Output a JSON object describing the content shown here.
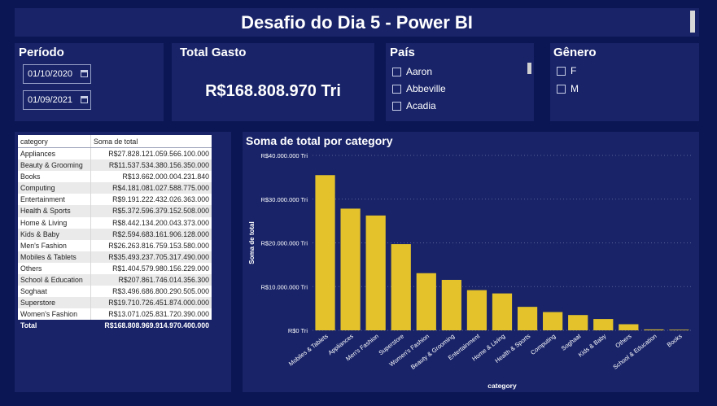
{
  "header": {
    "title": "Desafio do Dia 5 - Power BI"
  },
  "periodo": {
    "title": "Período",
    "start_date": "01/10/2020",
    "end_date": "01/09/2021"
  },
  "total_gasto": {
    "title": "Total Gasto",
    "value": "R$168.808.970 Tri"
  },
  "pais": {
    "title": "País",
    "options": [
      "Aaron",
      "Abbeville",
      "Acadia"
    ]
  },
  "genero": {
    "title": "Gênero",
    "options": [
      "F",
      "M"
    ]
  },
  "table": {
    "headers": [
      "category",
      "Soma de total"
    ],
    "rows": [
      [
        "Appliances",
        "R$27.828.121.059.566.100.000"
      ],
      [
        "Beauty & Grooming",
        "R$11.537.534.380.156.350.000"
      ],
      [
        "Books",
        "R$13.662.000.004.231.840"
      ],
      [
        "Computing",
        "R$4.181.081.027.588.775.000"
      ],
      [
        "Entertainment",
        "R$9.191.222.432.026.363.000"
      ],
      [
        "Health & Sports",
        "R$5.372.596.379.152.508.000"
      ],
      [
        "Home & Living",
        "R$8.442.134.200.043.373.000"
      ],
      [
        "Kids & Baby",
        "R$2.594.683.161.906.128.000"
      ],
      [
        "Men's Fashion",
        "R$26.263.816.759.153.580.000"
      ],
      [
        "Mobiles & Tablets",
        "R$35.493.237.705.317.490.000"
      ],
      [
        "Others",
        "R$1.404.579.980.156.229.000"
      ],
      [
        "School & Education",
        "R$207.861.746.014.356.300"
      ],
      [
        "Soghaat",
        "R$3.496.686.800.290.505.000"
      ],
      [
        "Superstore",
        "R$19.710.726.451.874.000.000"
      ],
      [
        "Women's Fashion",
        "R$13.071.025.831.720.390.000"
      ]
    ],
    "total_label": "Total",
    "total_value": "R$168.808.969.914.970.400.000"
  },
  "chart_data": {
    "type": "bar",
    "title": "Soma de total por category",
    "xlabel": "category",
    "ylabel": "Soma de total",
    "categories": [
      "Mobiles & Tablets",
      "Appliances",
      "Men's Fashion",
      "Superstore",
      "Women's Fashion",
      "Beauty & Grooming",
      "Entertainment",
      "Home & Living",
      "Health & Sports",
      "Computing",
      "Soghaat",
      "Kids & Baby",
      "Others",
      "School & Education",
      "Books"
    ],
    "values": [
      35.49,
      27.83,
      26.26,
      19.71,
      13.07,
      11.54,
      9.19,
      8.44,
      5.37,
      4.18,
      3.5,
      2.59,
      1.4,
      0.21,
      0.01
    ],
    "value_unit": "R$ thousand Tri",
    "yticks": [
      0,
      10,
      20,
      30,
      40
    ],
    "ytick_labels": [
      "R$0 Tri",
      "R$10.000.000 Tri",
      "R$20.000.000 Tri",
      "R$30.000.000 Tri",
      "R$40.000.000 Tri"
    ],
    "ylim": [
      0,
      40
    ],
    "grid": true,
    "bar_color": "#e3c22b",
    "background": "#182368"
  }
}
